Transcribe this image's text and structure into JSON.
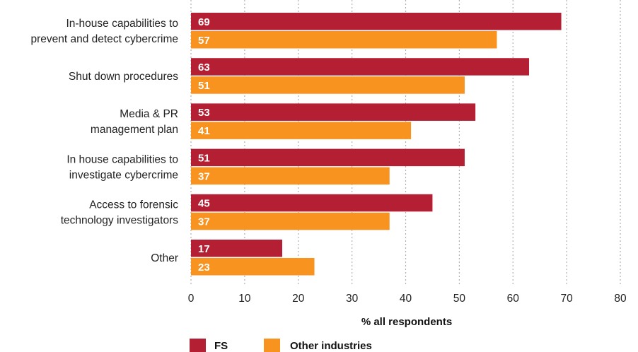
{
  "chart_data": {
    "type": "bar",
    "orientation": "horizontal",
    "categories": [
      [
        "In-house capabilities to",
        "prevent and detect cybercrime"
      ],
      [
        "Shut down procedures"
      ],
      [
        "Media & PR",
        "management plan"
      ],
      [
        "In house capabilities to",
        "investigate cybercrime"
      ],
      [
        "Access to forensic",
        "technology investigators"
      ],
      [
        "Other"
      ]
    ],
    "series": [
      {
        "name": "FS",
        "color": "#b41f33",
        "values": [
          69,
          63,
          53,
          51,
          45,
          17
        ]
      },
      {
        "name": "Other industries",
        "color": "#f7931e",
        "values": [
          57,
          51,
          41,
          37,
          37,
          23
        ]
      }
    ],
    "xlabel": "% all respondents",
    "xlim": [
      0,
      80
    ],
    "xticks": [
      0,
      10,
      20,
      30,
      40,
      50,
      60,
      70,
      80
    ],
    "grid": "vertical dotted",
    "legend": "bottom-left"
  }
}
